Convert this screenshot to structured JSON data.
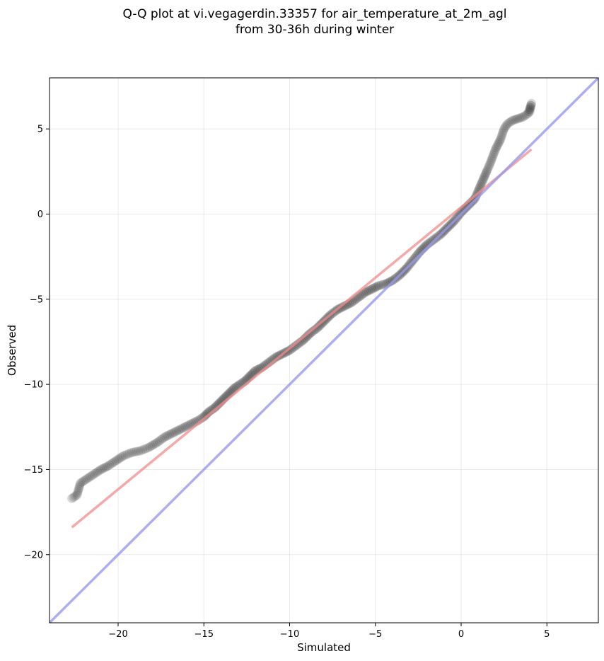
{
  "chart_data": {
    "type": "scatter",
    "title_lines": [
      "Q-Q plot at vi.vegagerdin.33357 for air_temperature_at_2m_agl",
      "from 30-36h during winter"
    ],
    "xlabel": "Simulated",
    "ylabel": "Observed",
    "xlim": [
      -24,
      8
    ],
    "ylim": [
      -24,
      8
    ],
    "xticks": [
      -20,
      -15,
      -10,
      -5,
      0,
      5
    ],
    "yticks": [
      -20,
      -15,
      -10,
      -5,
      0,
      5
    ],
    "xtick_labels": [
      "−20",
      "−15",
      "−10",
      "−5",
      "0",
      "5"
    ],
    "ytick_labels": [
      "−20",
      "−15",
      "−10",
      "−5",
      "0",
      "5"
    ],
    "grid": true,
    "series": [
      {
        "kind": "quantile-points",
        "color": "#333333",
        "x": [
          -22.7,
          -22.4,
          -22.2,
          -21.9,
          -21.6,
          -21.3,
          -21.0,
          -20.6,
          -20.3,
          -20.0,
          -19.7,
          -19.2,
          -18.7,
          -18.2,
          -17.7,
          -17.3,
          -16.9,
          -16.5,
          -16.1,
          -15.7,
          -15.3,
          -15.0,
          -14.7,
          -14.4,
          -14.1,
          -13.8,
          -13.5,
          -13.2,
          -12.9,
          -12.6,
          -12.3,
          -12.0,
          -11.6,
          -11.2,
          -10.8,
          -10.4,
          -10.0,
          -9.6,
          -9.2,
          -8.8,
          -8.4,
          -8.0,
          -7.6,
          -7.2,
          -6.8,
          -6.4,
          -6.0,
          -5.6,
          -5.2,
          -4.8,
          -4.4,
          -4.0,
          -3.6,
          -3.2,
          -2.8,
          -2.4,
          -2.0,
          -1.6,
          -1.2,
          -0.8,
          -0.4,
          0.0,
          0.4,
          0.8,
          1.1,
          1.4,
          1.7,
          2.0,
          2.3,
          2.5,
          2.7,
          3.0,
          3.3,
          3.6,
          3.9,
          4.1,
          4.0
        ],
        "y": [
          -16.7,
          -16.5,
          -15.8,
          -15.6,
          -15.4,
          -15.2,
          -15.0,
          -14.8,
          -14.6,
          -14.4,
          -14.2,
          -14.0,
          -13.9,
          -13.7,
          -13.4,
          -13.1,
          -12.9,
          -12.7,
          -12.5,
          -12.3,
          -12.1,
          -11.9,
          -11.6,
          -11.4,
          -11.1,
          -10.8,
          -10.5,
          -10.2,
          -10.0,
          -9.8,
          -9.5,
          -9.2,
          -9.0,
          -8.7,
          -8.4,
          -8.2,
          -8.0,
          -7.7,
          -7.4,
          -7.0,
          -6.7,
          -6.3,
          -5.9,
          -5.6,
          -5.4,
          -5.2,
          -4.9,
          -4.6,
          -4.4,
          -4.2,
          -4.1,
          -3.9,
          -3.6,
          -3.2,
          -2.7,
          -2.2,
          -1.8,
          -1.5,
          -1.2,
          -0.8,
          -0.4,
          0.1,
          0.5,
          0.9,
          1.6,
          2.3,
          3.0,
          3.8,
          4.4,
          5.0,
          5.3,
          5.5,
          5.6,
          5.7,
          5.9,
          6.5,
          6.0
        ]
      },
      {
        "kind": "fit-line",
        "color": "#f28b8b",
        "x": [
          -22.7,
          4.1
        ],
        "y": [
          -18.4,
          3.8
        ]
      },
      {
        "kind": "identity-line",
        "color": "#9999ee",
        "x": [
          -24,
          8
        ],
        "y": [
          -24,
          8
        ]
      }
    ]
  }
}
